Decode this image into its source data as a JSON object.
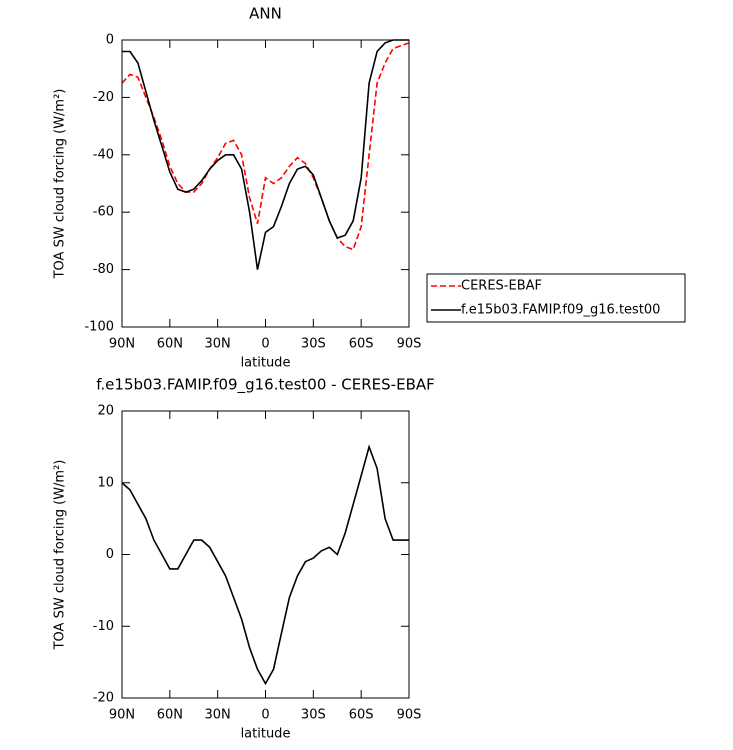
{
  "chart_data": [
    {
      "type": "line",
      "title": "ANN",
      "x_label": "latitude",
      "y_label": "TOA SW cloud forcing (W/m²)",
      "x": [
        90,
        85,
        80,
        75,
        70,
        65,
        60,
        55,
        50,
        45,
        40,
        35,
        30,
        25,
        20,
        15,
        10,
        5,
        0,
        -5,
        -10,
        -15,
        -20,
        -25,
        -30,
        -35,
        -40,
        -45,
        -50,
        -55,
        -60,
        -65,
        -70,
        -75,
        -80,
        -85,
        -90
      ],
      "series": [
        {
          "name": "CERES-EBAF",
          "color": "#ff0000",
          "dash": "dashed",
          "values": [
            -15,
            -12,
            -13,
            -20,
            -27,
            -35,
            -44,
            -50,
            -53,
            -53,
            -50,
            -45,
            -41,
            -36,
            -35,
            -40,
            -55,
            -64,
            -48,
            -50,
            -48,
            -44,
            -41,
            -43,
            -48,
            -55,
            -63,
            -69,
            -72,
            -73,
            -65,
            -40,
            -15,
            -8,
            -3,
            -2,
            -1
          ]
        },
        {
          "name": "f.e15b03.FAMIP.f09_g16.test00",
          "color": "#000000",
          "dash": "solid",
          "values": [
            -4,
            -4,
            -8,
            -18,
            -28,
            -37,
            -46,
            -52,
            -53,
            -52,
            -49,
            -45,
            -42,
            -40,
            -40,
            -45,
            -60,
            -80,
            -67,
            -65,
            -58,
            -50,
            -45,
            -44,
            -47,
            -55,
            -63,
            -69,
            -68,
            -63,
            -48,
            -15,
            -4,
            -1,
            0,
            0,
            0
          ]
        }
      ],
      "xlim": [
        90,
        -90
      ],
      "xticks": [
        {
          "value": 90,
          "label": "90N"
        },
        {
          "value": 60,
          "label": "60N"
        },
        {
          "value": 30,
          "label": "30N"
        },
        0,
        {
          "value": -30,
          "label": "30S"
        },
        {
          "value": -60,
          "label": "60S"
        },
        {
          "value": -90,
          "label": "90S"
        }
      ],
      "ylim": [
        -100,
        0
      ],
      "yticks": [
        -100,
        -80,
        -60,
        -40,
        -20,
        0
      ],
      "legend": "outside-right"
    },
    {
      "type": "line",
      "title": "f.e15b03.FAMIP.f09_g16.test00 - CERES-EBAF",
      "x_label": "latitude",
      "y_label": "TOA SW cloud forcing (W/m²)",
      "x": [
        90,
        85,
        80,
        75,
        70,
        65,
        60,
        55,
        50,
        45,
        40,
        35,
        30,
        25,
        20,
        15,
        10,
        5,
        0,
        -5,
        -10,
        -15,
        -20,
        -25,
        -30,
        -35,
        -40,
        -45,
        -50,
        -55,
        -60,
        -65,
        -70,
        -75,
        -80,
        -85,
        -90
      ],
      "values": [
        10,
        9,
        7,
        5,
        2,
        0,
        -2,
        -2,
        0,
        2,
        2,
        1,
        -1,
        -3,
        -6,
        -9,
        -13,
        -16,
        -18,
        -16,
        -11,
        -6,
        -3,
        -1,
        -0.5,
        0.5,
        1,
        0,
        3,
        7,
        11,
        15,
        12,
        5,
        2,
        2,
        2
      ],
      "color": "#000000",
      "xlim": [
        90,
        -90
      ],
      "xticks": [
        {
          "value": 90,
          "label": "90N"
        },
        {
          "value": 60,
          "label": "60N"
        },
        {
          "value": 30,
          "label": "30N"
        },
        0,
        {
          "value": -30,
          "label": "30S"
        },
        {
          "value": -60,
          "label": "60S"
        },
        {
          "value": -90,
          "label": "90S"
        }
      ],
      "ylim": [
        -20,
        20
      ],
      "yticks": [
        -20,
        -10,
        0,
        10,
        20
      ]
    }
  ]
}
